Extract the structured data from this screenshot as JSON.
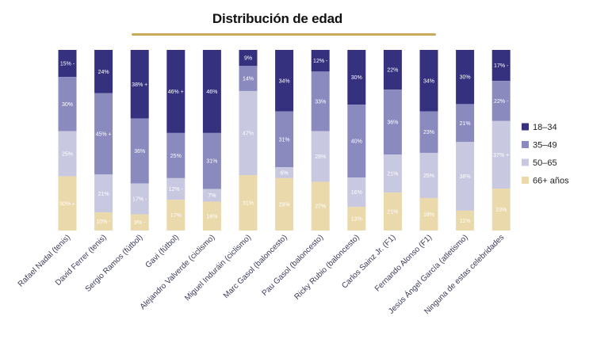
{
  "chart_data": {
    "type": "bar",
    "stacked": true,
    "normalized": true,
    "title": "Distribución de edad",
    "categories": [
      "Rafael Nadal (tenis)",
      "David Ferrer (tenis)",
      "Sergio Ramos (fútbol)",
      "Gavi (fútbol)",
      "Alejandro Valverde (ciclismo)",
      "Miguel Induráin (ciclismo)",
      "Marc Gasol (baloncesto)",
      "Pau Gasol (baloncesto)",
      "Ricky Rubio (baloncesto)",
      "Carlos Sainz Jr. (F1)",
      "Fernando Alonso (F1)",
      "Jesús Ángel García (atletismo)",
      "Ninguna de estas celebridades"
    ],
    "series": [
      {
        "name": "18–34",
        "color": "#35317f",
        "values": [
          15,
          24,
          38,
          46,
          46,
          9,
          34,
          12,
          30,
          22,
          34,
          30,
          17
        ],
        "labels": [
          "15% -",
          "24%",
          "38% +",
          "46% +",
          "46%",
          "9%",
          "34%",
          "12% -",
          "30%",
          "22%",
          "34%",
          "30%",
          "17% -"
        ]
      },
      {
        "name": "35–49",
        "color": "#8a8abf",
        "values": [
          30,
          45,
          36,
          25,
          31,
          14,
          31,
          33,
          40,
          36,
          23,
          21,
          22
        ],
        "labels": [
          "30%",
          "45% +",
          "36%",
          "25%",
          "31%",
          "14%",
          "31%",
          "33%",
          "40%",
          "36%",
          "23%",
          "21%",
          "22% -"
        ]
      },
      {
        "name": "50–65",
        "color": "#c8c8e1",
        "values": [
          25,
          21,
          17,
          12,
          7,
          47,
          6,
          28,
          16,
          21,
          25,
          38,
          37
        ],
        "labels": [
          "25%",
          "21%",
          "17% -",
          "12% -",
          "7%",
          "47%",
          "6%",
          "28%",
          "16%",
          "21%",
          "25%",
          "38%",
          "37% +"
        ]
      },
      {
        "name": "66+ años",
        "color": "#ead9ab",
        "values": [
          30,
          10,
          9,
          17,
          16,
          31,
          29,
          27,
          13,
          21,
          18,
          11,
          23
        ],
        "labels": [
          "30% +",
          "10% -",
          "9% -",
          "17%",
          "16%",
          "31%",
          "29%",
          "27%",
          "13%",
          "21%",
          "18%",
          "11%",
          "23%"
        ]
      }
    ],
    "ylim": [
      0,
      100
    ],
    "legend_position": "right",
    "grid": false
  }
}
